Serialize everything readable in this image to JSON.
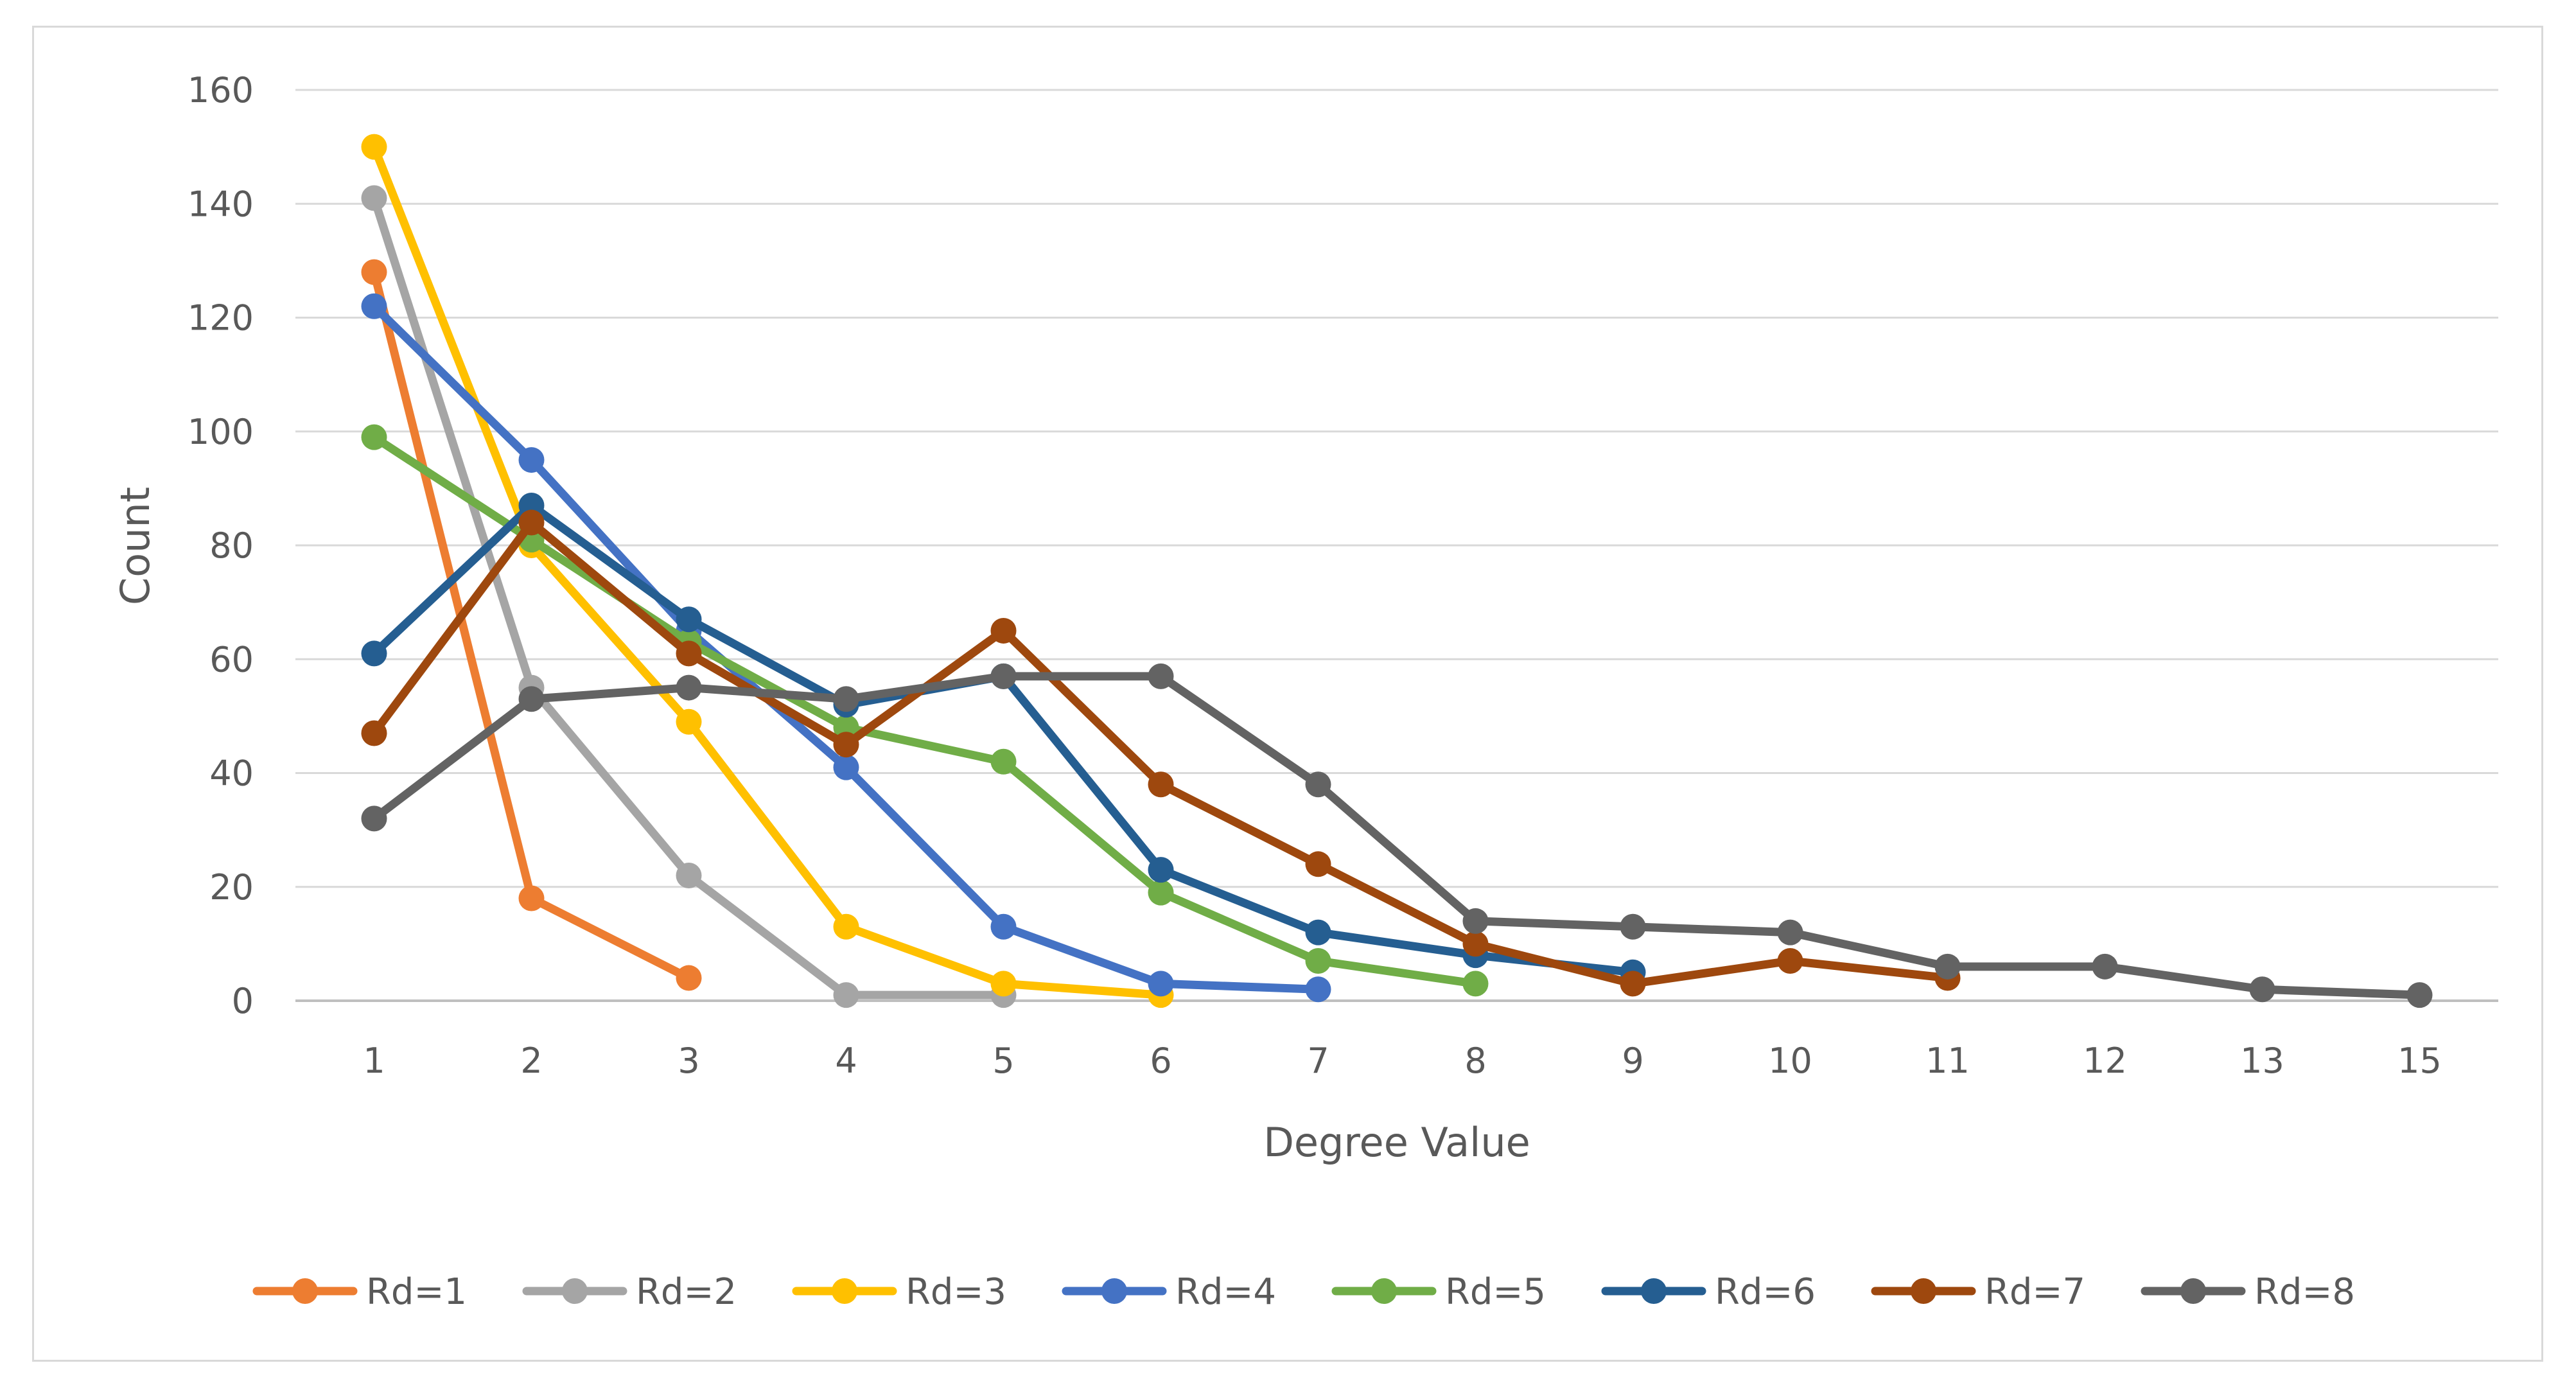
{
  "chart_data": {
    "type": "line",
    "categories": [
      "1",
      "2",
      "3",
      "4",
      "5",
      "6",
      "7",
      "8",
      "9",
      "10",
      "11",
      "12",
      "13",
      "15"
    ],
    "xlabel": "Degree Value",
    "ylabel": "Count",
    "ylim": [
      0,
      160
    ],
    "yticks": [
      "0",
      "20",
      "40",
      "60",
      "80",
      "100",
      "120",
      "140",
      "160"
    ],
    "grid": true,
    "legend_position": "bottom",
    "series": [
      {
        "name": "Rd=1",
        "color": "#ED7D31",
        "values": [
          128,
          18,
          4,
          null,
          null,
          null,
          null,
          null,
          null,
          null,
          null,
          null,
          null,
          null
        ]
      },
      {
        "name": "Rd=2",
        "color": "#A5A5A5",
        "values": [
          141,
          55,
          22,
          1,
          1,
          null,
          null,
          null,
          null,
          null,
          null,
          null,
          null,
          null
        ]
      },
      {
        "name": "Rd=3",
        "color": "#FFC000",
        "values": [
          150,
          80,
          49,
          13,
          3,
          1,
          null,
          null,
          null,
          null,
          null,
          null,
          null,
          null
        ]
      },
      {
        "name": "Rd=4",
        "color": "#4472C4",
        "values": [
          122,
          95,
          65,
          41,
          13,
          3,
          2,
          null,
          null,
          null,
          null,
          null,
          null,
          null
        ]
      },
      {
        "name": "Rd=5",
        "color": "#70AD47",
        "values": [
          99,
          81,
          63,
          48,
          42,
          19,
          7,
          3,
          null,
          null,
          null,
          null,
          null,
          null
        ]
      },
      {
        "name": "Rd=6",
        "color": "#255E91",
        "values": [
          61,
          87,
          67,
          52,
          57,
          23,
          12,
          8,
          5,
          null,
          null,
          null,
          null,
          null
        ]
      },
      {
        "name": "Rd=7",
        "color": "#9E480E",
        "values": [
          47,
          84,
          61,
          45,
          65,
          38,
          24,
          10,
          3,
          7,
          4,
          null,
          null,
          null
        ]
      },
      {
        "name": "Rd=8",
        "color": "#636363",
        "values": [
          32,
          53,
          55,
          53,
          57,
          57,
          38,
          14,
          13,
          12,
          6,
          6,
          2,
          1
        ]
      }
    ]
  }
}
